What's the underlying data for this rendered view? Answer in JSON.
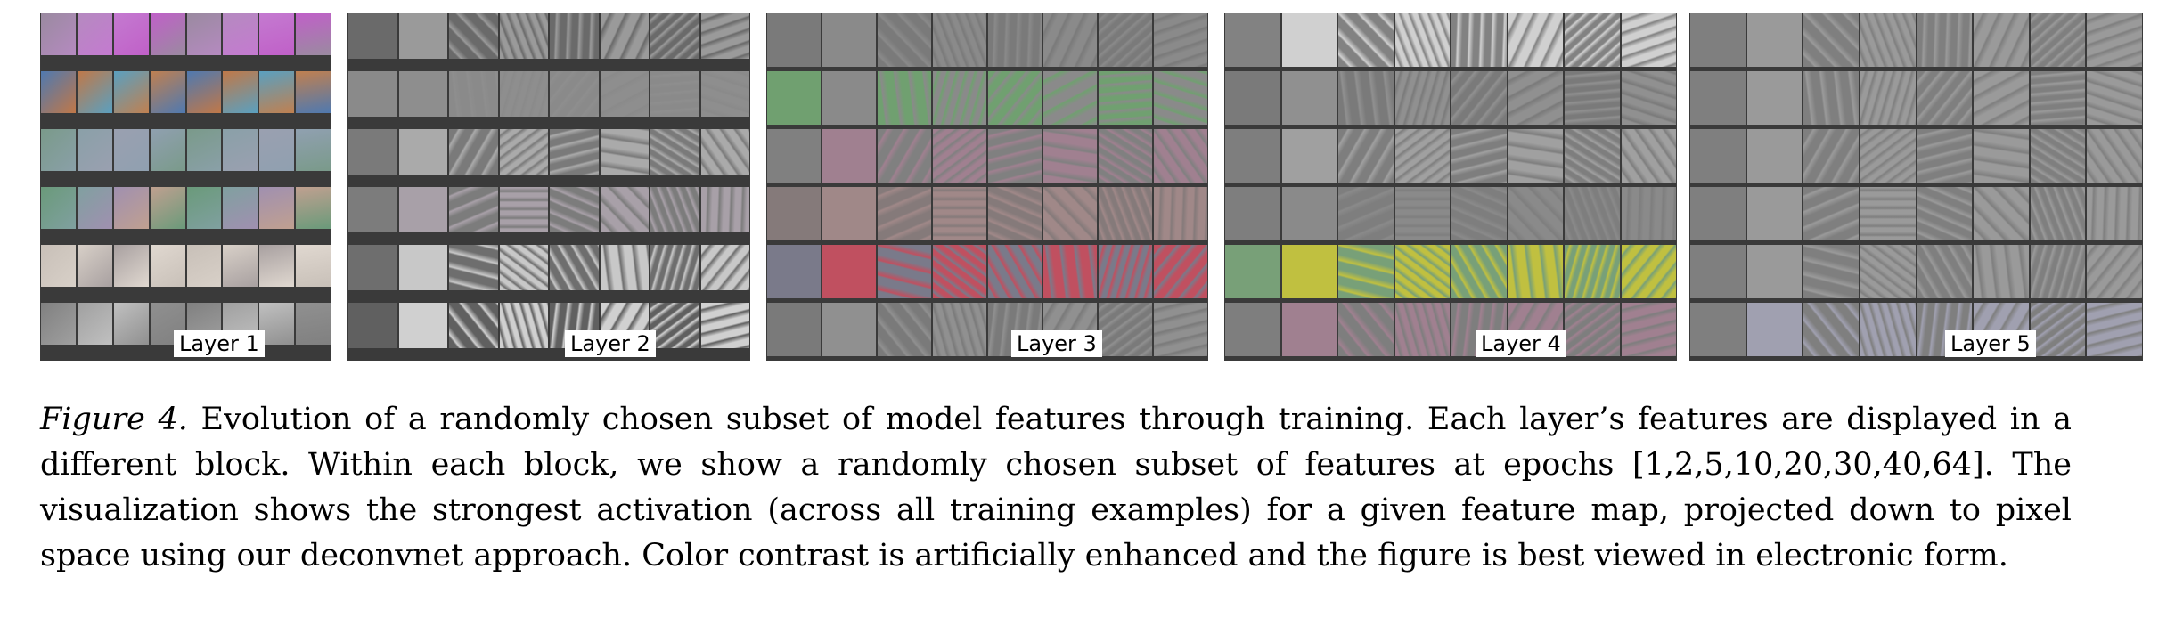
{
  "figure": {
    "layers": [
      {
        "label": "Layer 1",
        "tint": "#8b7a8f"
      },
      {
        "label": "Layer 2",
        "tint": "#8a8a8a"
      },
      {
        "label": "Layer 3",
        "tint": "#7c7c7c"
      },
      {
        "label": "Layer 4",
        "tint": "#7e7e7e"
      },
      {
        "label": "Layer 5",
        "tint": "#7f7f7f"
      }
    ]
  },
  "caption": {
    "fig_num": "Figure 4.",
    "text": " Evolution of a randomly chosen subset of model features through training. Each layer’s features are displayed in a different block. Within each block, we show a randomly chosen subset of features at epochs [1,2,5,10,20,30,40,64]. The visualization shows the strongest activation (across all training examples) for a given feature map, projected down to pixel space using our deconvnet approach. Color contrast is artificially enhanced and the figure is best viewed in electronic form."
  }
}
